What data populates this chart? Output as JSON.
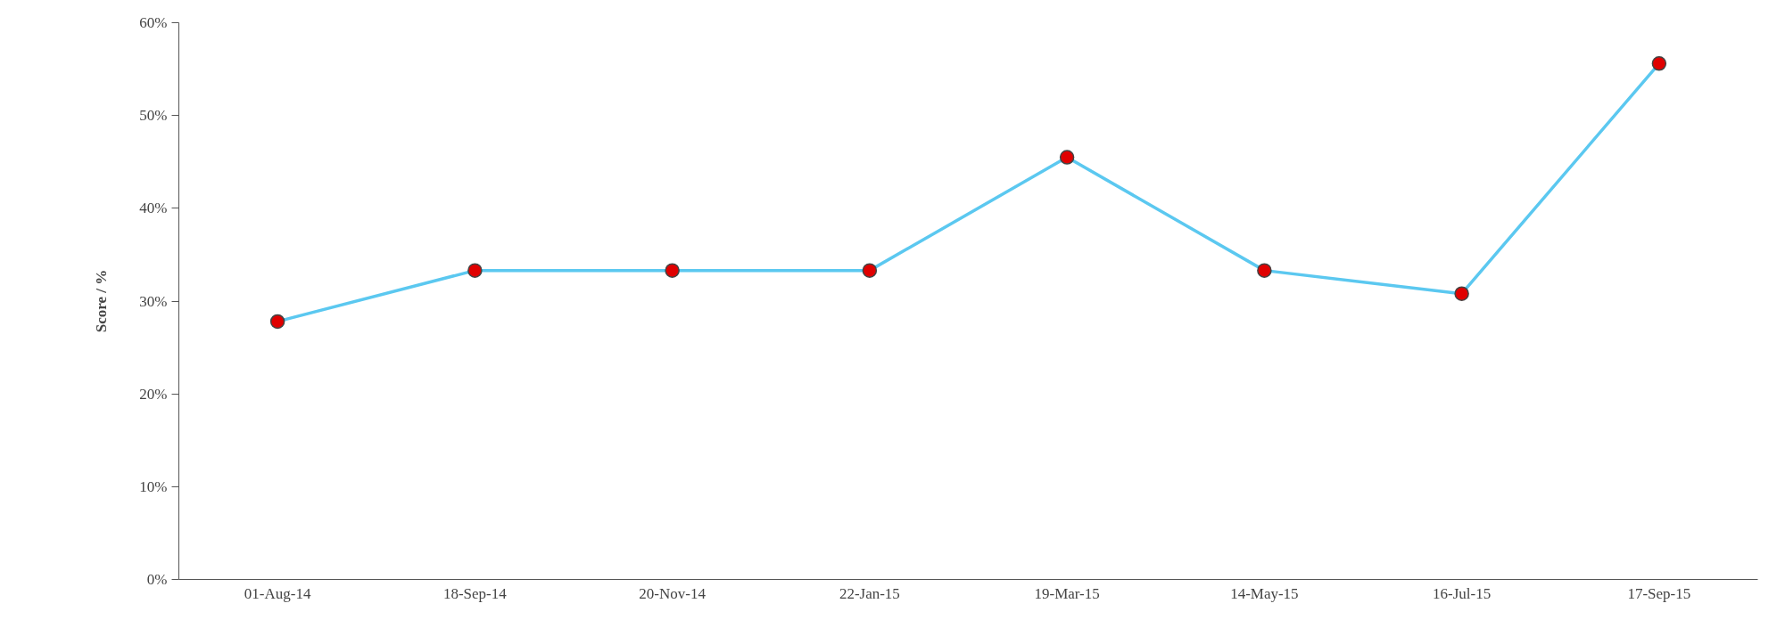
{
  "chart_data": {
    "type": "line",
    "ylabel": "Score / %",
    "categories": [
      "01-Aug-14",
      "18-Sep-14",
      "20-Nov-14",
      "22-Jan-15",
      "19-Mar-15",
      "14-May-15",
      "16-Jul-15",
      "17-Sep-15"
    ],
    "series": [
      {
        "color": "#5bc8f0",
        "values": [
          27.8,
          33.3,
          33.3,
          33.3,
          45.5,
          33.3,
          30.8,
          55.6
        ]
      }
    ],
    "ylim": [
      0,
      60
    ],
    "yticks": [
      {
        "value": 0,
        "label": "0%"
      },
      {
        "value": 10,
        "label": "10%"
      },
      {
        "value": 20,
        "label": "20%"
      },
      {
        "value": 30,
        "label": "30%"
      },
      {
        "value": 40,
        "label": "40%"
      },
      {
        "value": 50,
        "label": "50%"
      },
      {
        "value": 60,
        "label": "60%"
      }
    ],
    "marker": "circle",
    "grid": false
  }
}
